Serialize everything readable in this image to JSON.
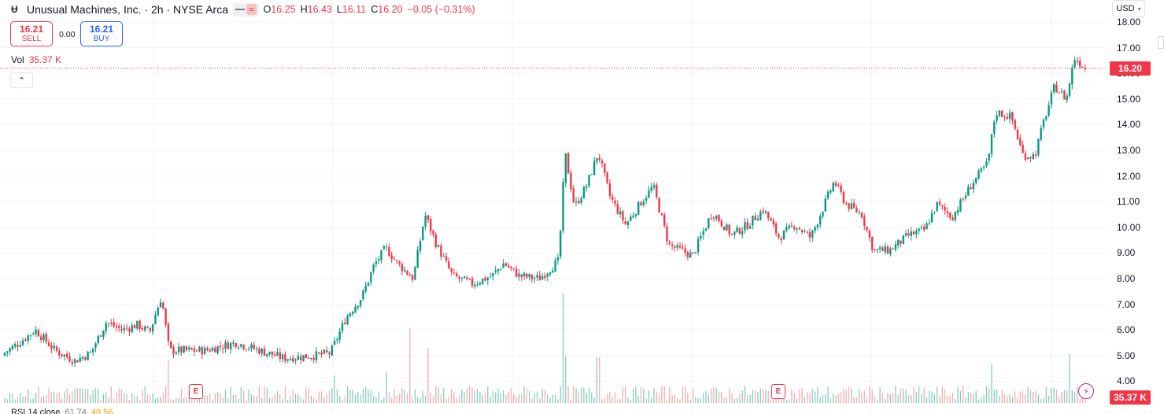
{
  "header": {
    "symbol": "Unusual Machines, Inc. · 2h · NYSE Arca",
    "toggle_icon": "≈",
    "ohlc": [
      {
        "key": "O",
        "value": "16.25"
      },
      {
        "key": "H",
        "value": "16.43"
      },
      {
        "key": "L",
        "value": "16.11"
      },
      {
        "key": "C",
        "value": "16.20"
      }
    ],
    "change": "−0.05 (−0.31%)"
  },
  "trade": {
    "sell_price": "16.21",
    "sell_label": "SELL",
    "spread": "0.00",
    "buy_price": "16.21",
    "buy_label": "BUY"
  },
  "volume_legend": {
    "label": "Vol",
    "value": "35.37 K"
  },
  "collapse_icon": "⌃",
  "currency": {
    "label": "USD",
    "chevron": "▾"
  },
  "price_axis": [
    "18.00",
    "17.00",
    "16.00",
    "15.00",
    "14.00",
    "13.00",
    "12.00",
    "11.00",
    "10.00",
    "9.00",
    "8.00",
    "7.00",
    "6.00",
    "5.00",
    "4.00"
  ],
  "last_price_tag": "16.20",
  "volume_tag": "35.37 K",
  "earnings_markers": [
    "E",
    "E"
  ],
  "flash_icon": "⚡",
  "rsi_legend": {
    "label": "RSI 14 close",
    "value1": "61.74",
    "value2": "49.56"
  },
  "colors": {
    "up": "#089981",
    "down": "#f23645",
    "vol_up": "#7fc8b9",
    "vol_down": "#f7a5ab",
    "grid": "#f0f3fa",
    "current_line": "#f23645"
  },
  "chart_data": {
    "type": "candlestick",
    "ylim": [
      4,
      18
    ],
    "last_close": 16.2,
    "anchors": [
      [
        0,
        5.0
      ],
      [
        20,
        5.4
      ],
      [
        45,
        6.0
      ],
      [
        70,
        5.2
      ],
      [
        95,
        4.8
      ],
      [
        115,
        5.1
      ],
      [
        135,
        6.3
      ],
      [
        155,
        6.0
      ],
      [
        175,
        6.2
      ],
      [
        190,
        5.9
      ],
      [
        205,
        7.3
      ],
      [
        215,
        5.2
      ],
      [
        260,
        5.2
      ],
      [
        300,
        5.5
      ],
      [
        330,
        5.2
      ],
      [
        360,
        4.9
      ],
      [
        400,
        5.0
      ],
      [
        420,
        5.1
      ],
      [
        440,
        6.5
      ],
      [
        460,
        7.3
      ],
      [
        475,
        8.5
      ],
      [
        490,
        9.2
      ],
      [
        505,
        8.6
      ],
      [
        525,
        8.0
      ],
      [
        540,
        10.5
      ],
      [
        555,
        9.3
      ],
      [
        575,
        8.1
      ],
      [
        600,
        7.8
      ],
      [
        625,
        8.1
      ],
      [
        640,
        8.6
      ],
      [
        660,
        8.1
      ],
      [
        685,
        8.0
      ],
      [
        710,
        8.7
      ],
      [
        718,
        12.9
      ],
      [
        730,
        10.8
      ],
      [
        745,
        11.6
      ],
      [
        760,
        12.9
      ],
      [
        775,
        11.2
      ],
      [
        795,
        10.1
      ],
      [
        815,
        11.0
      ],
      [
        830,
        11.6
      ],
      [
        850,
        9.3
      ],
      [
        880,
        8.9
      ],
      [
        905,
        10.6
      ],
      [
        930,
        9.7
      ],
      [
        950,
        10.1
      ],
      [
        970,
        10.7
      ],
      [
        990,
        9.6
      ],
      [
        1010,
        10.1
      ],
      [
        1030,
        9.6
      ],
      [
        1045,
        10.7
      ],
      [
        1060,
        11.8
      ],
      [
        1075,
        10.9
      ],
      [
        1095,
        10.5
      ],
      [
        1110,
        9.1
      ],
      [
        1130,
        9.1
      ],
      [
        1155,
        9.7
      ],
      [
        1175,
        9.9
      ],
      [
        1190,
        10.9
      ],
      [
        1210,
        10.4
      ],
      [
        1235,
        11.7
      ],
      [
        1255,
        12.5
      ],
      [
        1265,
        14.5
      ],
      [
        1285,
        14.3
      ],
      [
        1300,
        12.8
      ],
      [
        1315,
        12.8
      ],
      [
        1325,
        14.0
      ],
      [
        1340,
        15.5
      ],
      [
        1355,
        15.0
      ],
      [
        1365,
        16.6
      ],
      [
        1380,
        16.2
      ]
    ],
    "volume_spikes": [
      [
        215,
        55
      ],
      [
        425,
        35
      ],
      [
        490,
        40
      ],
      [
        520,
        95
      ],
      [
        545,
        70
      ],
      [
        715,
        140
      ],
      [
        720,
        60
      ],
      [
        760,
        58
      ],
      [
        1260,
        50
      ],
      [
        1360,
        62
      ]
    ]
  }
}
